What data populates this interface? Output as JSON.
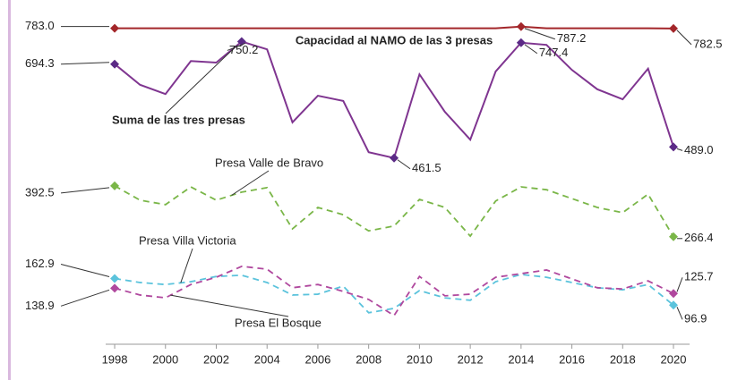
{
  "chart_data": {
    "type": "line",
    "x": [
      1998,
      1999,
      2000,
      2001,
      2002,
      2003,
      2004,
      2005,
      2006,
      2007,
      2008,
      2009,
      2010,
      2011,
      2012,
      2013,
      2014,
      2015,
      2016,
      2017,
      2018,
      2019,
      2020
    ],
    "xlim": [
      1997.6,
      2020.8
    ],
    "xticks": [
      1998,
      2000,
      2002,
      2004,
      2006,
      2008,
      2010,
      2012,
      2014,
      2016,
      2018,
      2020
    ],
    "ylim": [
      0,
      800
    ],
    "series": [
      {
        "name": "Capacidad al NAMO de las 3 presas",
        "color": "#a3262a",
        "style": "solid",
        "values": [
          783,
          783,
          783,
          783,
          783,
          783,
          783,
          783,
          783,
          783,
          783,
          783,
          783,
          783,
          783,
          783,
          787.2,
          783,
          783,
          783,
          783,
          783,
          782.5
        ],
        "value_labels": [
          "783.0",
          null,
          null,
          null,
          null,
          null,
          null,
          null,
          null,
          null,
          null,
          null,
          null,
          null,
          null,
          null,
          "787.2",
          null,
          null,
          null,
          null,
          null,
          "782.5"
        ]
      },
      {
        "name": "Suma de las tres presas",
        "color": "#7f3590",
        "style": "solid",
        "values": [
          694.3,
          643,
          620,
          702,
          698,
          750.2,
          731,
          550,
          616,
          603,
          476,
          461.5,
          669,
          576,
          507,
          676,
          747.4,
          742,
          680,
          632,
          607,
          683,
          489.0
        ],
        "value_labels": [
          "694.3",
          null,
          null,
          null,
          null,
          "750.2",
          null,
          null,
          null,
          null,
          null,
          "461.5",
          null,
          null,
          null,
          null,
          "747.4",
          null,
          null,
          null,
          null,
          null,
          "489.0"
        ]
      },
      {
        "name": "Presa Valle de Bravo",
        "color": "#7ab648",
        "style": "dashed",
        "values": [
          392.5,
          357,
          346,
          390,
          357,
          377,
          388,
          286,
          339,
          321,
          281,
          293,
          359,
          339,
          268,
          355,
          390,
          383,
          361,
          339,
          326,
          372,
          266.4
        ],
        "value_labels": [
          "392.5",
          null,
          null,
          null,
          null,
          null,
          null,
          null,
          null,
          null,
          null,
          null,
          null,
          null,
          null,
          null,
          null,
          null,
          null,
          null,
          null,
          null,
          "266.4"
        ]
      },
      {
        "name": "Presa Villa Victoria",
        "color": "#5bc3dc",
        "style": "dashed",
        "values": [
          162.9,
          153,
          148,
          155,
          168,
          171,
          153,
          122,
          124,
          144,
          78,
          89,
          133,
          115,
          109,
          155,
          173,
          166,
          153,
          140,
          135,
          148,
          96.9
        ],
        "value_labels": [
          "162.9",
          null,
          null,
          null,
          null,
          null,
          null,
          null,
          null,
          null,
          null,
          null,
          null,
          null,
          null,
          null,
          null,
          null,
          null,
          null,
          null,
          null,
          "96.9"
        ]
      },
      {
        "name": "Presa El Bosque",
        "color": "#b0489e",
        "style": "dashed",
        "values": [
          138.9,
          122,
          115,
          148,
          166,
          193,
          186,
          140,
          148,
          131,
          111,
          71,
          168,
          120,
          124,
          166,
          175,
          184,
          162,
          140,
          137,
          157,
          125.7
        ],
        "value_labels": [
          "138.9",
          null,
          null,
          null,
          null,
          null,
          null,
          null,
          null,
          null,
          null,
          null,
          null,
          null,
          null,
          null,
          null,
          null,
          null,
          null,
          null,
          null,
          "125.7"
        ]
      }
    ]
  }
}
